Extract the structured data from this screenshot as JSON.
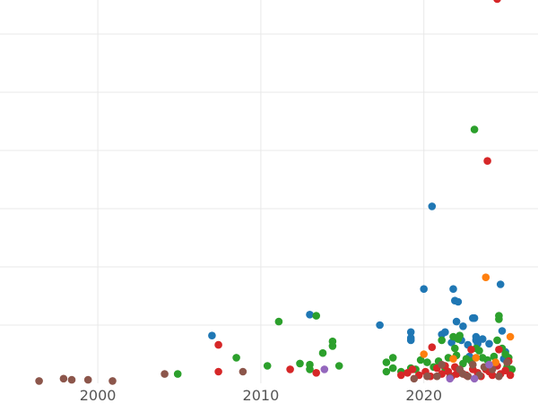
{
  "chart_data": {
    "type": "scatter",
    "title": "",
    "xlabel": "",
    "ylabel": "",
    "xlim": [
      1994,
      2027
    ],
    "ylim": [
      0,
      3.3
    ],
    "x_ticks": [
      2000,
      2010,
      2020
    ],
    "x_tick_labels": [
      "2000",
      "2010",
      "2020"
    ],
    "y_ticks": [
      0.5,
      1.0,
      1.5,
      2.0,
      2.5,
      3.0
    ],
    "grid": true,
    "legend": "none",
    "colors": {
      "blue": "#1f77b4",
      "green": "#2ca02c",
      "red": "#d62728",
      "brown": "#8c564b",
      "orange": "#ff7f0e",
      "purple": "#9467bd"
    },
    "series": [
      {
        "color": "blue",
        "points": [
          [
            2007.0,
            0.41
          ],
          [
            2013.0,
            0.59
          ],
          [
            2017.3,
            0.5
          ],
          [
            2019.2,
            0.44
          ],
          [
            2019.2,
            0.39
          ],
          [
            2019.2,
            0.37
          ],
          [
            2020.0,
            0.81
          ],
          [
            2020.5,
            1.52
          ],
          [
            2021.1,
            0.42
          ],
          [
            2021.3,
            0.44
          ],
          [
            2021.7,
            0.35
          ],
          [
            2021.8,
            0.81
          ],
          [
            2021.9,
            0.71
          ],
          [
            2022.0,
            0.53
          ],
          [
            2022.1,
            0.7
          ],
          [
            2022.3,
            0.37
          ],
          [
            2022.4,
            0.49
          ],
          [
            2022.7,
            0.33
          ],
          [
            2022.8,
            0.23
          ],
          [
            2023.0,
            0.56
          ],
          [
            2023.1,
            0.56
          ],
          [
            2023.2,
            0.4
          ],
          [
            2023.2,
            0.37
          ],
          [
            2023.3,
            0.34
          ],
          [
            2023.6,
            0.38
          ],
          [
            2024.0,
            0.34
          ],
          [
            2024.7,
            0.85
          ],
          [
            2024.8,
            0.45
          ],
          [
            2025.0,
            0.27
          ],
          [
            2024.9,
            0.21
          ]
        ]
      },
      {
        "color": "green",
        "points": [
          [
            2004.9,
            0.08
          ],
          [
            2008.5,
            0.22
          ],
          [
            2010.4,
            0.15
          ],
          [
            2011.1,
            0.53
          ],
          [
            2012.4,
            0.17
          ],
          [
            2013.0,
            0.16
          ],
          [
            2013.0,
            0.12
          ],
          [
            2013.4,
            0.58
          ],
          [
            2013.8,
            0.26
          ],
          [
            2014.4,
            0.36
          ],
          [
            2014.4,
            0.32
          ],
          [
            2014.8,
            0.15
          ],
          [
            2017.7,
            0.18
          ],
          [
            2017.7,
            0.1
          ],
          [
            2018.1,
            0.22
          ],
          [
            2018.1,
            0.13
          ],
          [
            2018.6,
            0.1
          ],
          [
            2019.2,
            0.13
          ],
          [
            2019.5,
            0.12
          ],
          [
            2019.8,
            0.2
          ],
          [
            2020.2,
            0.18
          ],
          [
            2020.6,
            0.14
          ],
          [
            2020.9,
            0.19
          ],
          [
            2021.1,
            0.37
          ],
          [
            2021.3,
            0.13
          ],
          [
            2021.5,
            0.22
          ],
          [
            2021.8,
            0.4
          ],
          [
            2021.9,
            0.3
          ],
          [
            2022.0,
            0.24
          ],
          [
            2022.1,
            0.38
          ],
          [
            2022.2,
            0.41
          ],
          [
            2022.4,
            0.17
          ],
          [
            2022.6,
            0.21
          ],
          [
            2022.9,
            0.19
          ],
          [
            2023.1,
            2.18
          ],
          [
            2023.2,
            0.3
          ],
          [
            2023.4,
            0.28
          ],
          [
            2023.6,
            0.22
          ],
          [
            2023.9,
            0.2
          ],
          [
            2024.3,
            0.23
          ],
          [
            2024.5,
            0.37
          ],
          [
            2024.6,
            0.58
          ],
          [
            2024.6,
            0.55
          ],
          [
            2024.8,
            0.3
          ],
          [
            2025.0,
            0.25
          ],
          [
            2025.1,
            0.14
          ],
          [
            2025.2,
            0.22
          ],
          [
            2025.4,
            0.12
          ]
        ]
      },
      {
        "color": "red",
        "points": [
          [
            2007.4,
            0.33
          ],
          [
            2007.4,
            0.1
          ],
          [
            2011.8,
            0.12
          ],
          [
            2013.4,
            0.09
          ],
          [
            2018.6,
            0.07
          ],
          [
            2019.0,
            0.09
          ],
          [
            2019.3,
            0.12
          ],
          [
            2019.7,
            0.07
          ],
          [
            2020.1,
            0.1
          ],
          [
            2020.4,
            0.06
          ],
          [
            2020.5,
            0.31
          ],
          [
            2020.8,
            0.13
          ],
          [
            2021.1,
            0.08
          ],
          [
            2021.3,
            0.15
          ],
          [
            2021.5,
            0.1
          ],
          [
            2021.7,
            0.06
          ],
          [
            2021.9,
            0.14
          ],
          [
            2022.0,
            0.08
          ],
          [
            2022.3,
            0.09
          ],
          [
            2022.6,
            0.07
          ],
          [
            2022.9,
            0.29
          ],
          [
            2023.0,
            0.12
          ],
          [
            2023.3,
            0.09
          ],
          [
            2023.5,
            0.06
          ],
          [
            2023.8,
            0.12
          ],
          [
            2023.9,
            1.91
          ],
          [
            2024.0,
            0.1
          ],
          [
            2024.2,
            0.07
          ],
          [
            2024.5,
            3.3
          ],
          [
            2024.5,
            0.15
          ],
          [
            2024.6,
            0.29
          ],
          [
            2024.7,
            0.08
          ],
          [
            2025.0,
            0.11
          ],
          [
            2025.2,
            0.19
          ],
          [
            2025.3,
            0.07
          ]
        ]
      },
      {
        "color": "brown",
        "points": [
          [
            1996.4,
            0.02
          ],
          [
            1997.9,
            0.04
          ],
          [
            1998.4,
            0.03
          ],
          [
            1999.4,
            0.03
          ],
          [
            2000.9,
            0.02
          ],
          [
            2004.1,
            0.08
          ],
          [
            2008.9,
            0.1
          ],
          [
            2019.4,
            0.04
          ],
          [
            2020.2,
            0.06
          ],
          [
            2020.8,
            0.06
          ],
          [
            2021.1,
            0.16
          ],
          [
            2021.6,
            0.05
          ],
          [
            2022.2,
            0.12
          ],
          [
            2022.4,
            0.08
          ],
          [
            2022.7,
            0.06
          ],
          [
            2023.0,
            0.16
          ],
          [
            2023.4,
            0.07
          ],
          [
            2023.7,
            0.14
          ],
          [
            2024.2,
            0.12
          ],
          [
            2024.6,
            0.06
          ],
          [
            2025.1,
            0.18
          ]
        ]
      },
      {
        "color": "orange",
        "points": [
          [
            2020.0,
            0.25
          ],
          [
            2021.8,
            0.21
          ],
          [
            2023.2,
            0.22
          ],
          [
            2023.8,
            0.91
          ],
          [
            2024.4,
            0.18
          ],
          [
            2025.3,
            0.4
          ]
        ]
      },
      {
        "color": "purple",
        "points": [
          [
            2013.9,
            0.12
          ],
          [
            2021.6,
            0.04
          ],
          [
            2023.1,
            0.04
          ],
          [
            2024.0,
            0.16
          ]
        ]
      }
    ]
  }
}
